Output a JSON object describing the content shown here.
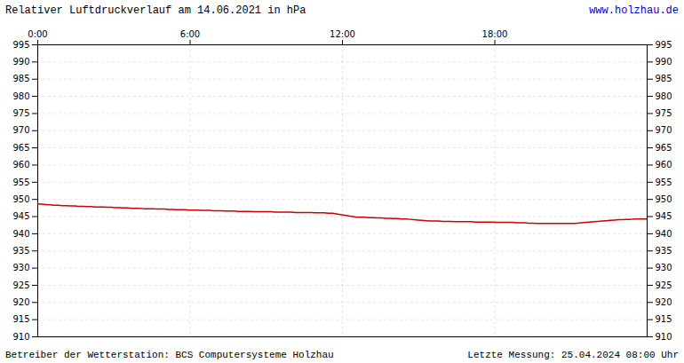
{
  "chart_data": {
    "type": "line",
    "title": "Relativer Luftdruckverlauf am 14.06.2021 in hPa",
    "annotations": [
      "www.holzhau.de",
      "Betreiber der Wetterstation: BCS Computersysteme Holzhau",
      "Letzte Messung: 25.04.2024 08:00 Uhr"
    ],
    "color": "#cc0000",
    "grid": true,
    "xlim": [
      0,
      1440
    ],
    "xticks": [
      {
        "value": 0,
        "label": "0:00"
      },
      {
        "value": 360,
        "label": "6:00"
      },
      {
        "value": 720,
        "label": "12:00"
      },
      {
        "value": 1080,
        "label": "18:00"
      }
    ],
    "ylim": [
      910,
      995
    ],
    "yticks": [
      910,
      915,
      920,
      925,
      930,
      935,
      940,
      945,
      950,
      955,
      960,
      965,
      970,
      975,
      980,
      985,
      990,
      995
    ],
    "x": [
      0,
      9.664,
      19.329,
      28.993,
      38.658,
      48.322,
      57.987,
      67.651,
      77.315,
      86.98,
      96.644,
      106.309,
      115.973,
      125.638,
      135.302,
      144.966,
      154.631,
      164.295,
      173.96,
      183.624,
      193.289,
      202.953,
      212.617,
      222.282,
      231.946,
      241.611,
      251.275,
      260.94,
      270.604,
      280.268,
      289.933,
      299.597,
      309.262,
      318.926,
      328.591,
      338.255,
      347.919,
      357.584,
      367.248,
      376.913,
      386.577,
      396.242,
      405.906,
      415.57,
      425.235,
      434.899,
      444.564,
      454.228,
      463.893,
      473.557,
      483.221,
      492.886,
      502.55,
      512.215,
      521.879,
      531.544,
      541.208,
      550.872,
      560.537,
      570.201,
      579.866,
      589.53,
      599.195,
      608.859,
      618.523,
      628.188,
      637.852,
      647.517,
      657.181,
      666.846,
      676.51,
      686.174,
      695.839,
      705.503,
      715.168,
      724.832,
      734.497,
      744.161,
      753.826,
      763.49,
      773.154,
      782.819,
      792.483,
      802.148,
      811.812,
      821.477,
      831.141,
      840.805,
      850.47,
      860.134,
      869.799,
      879.463,
      889.128,
      898.792,
      908.456,
      918.121,
      927.785,
      937.45,
      947.114,
      956.779,
      966.443,
      976.107,
      985.772,
      995.436,
      1005.101,
      1014.765,
      1024.43,
      1034.094,
      1043.758,
      1053.423,
      1063.087,
      1072.752,
      1082.416,
      1092.081,
      1101.745,
      1111.409,
      1121.074,
      1130.738,
      1140.403,
      1150.067,
      1159.732,
      1169.396,
      1179.06,
      1188.725,
      1198.389,
      1208.054,
      1217.718,
      1227.383,
      1237.047,
      1246.711,
      1256.376,
      1266.04,
      1275.705,
      1285.369,
      1295.034,
      1304.698,
      1314.362,
      1324.027,
      1333.691,
      1343.356,
      1353.02,
      1362.685,
      1372.349,
      1382.013,
      1391.678,
      1401.342,
      1411.007,
      1420.671,
      1430.336,
      1440
    ],
    "values": [
      948.7,
      948.6,
      948.5,
      948.4,
      948.3,
      948.3,
      948.2,
      948.2,
      948.1,
      948.1,
      948.0,
      948.0,
      947.9,
      947.9,
      947.8,
      947.8,
      947.8,
      947.7,
      947.7,
      947.6,
      947.6,
      947.5,
      947.5,
      947.4,
      947.4,
      947.4,
      947.3,
      947.3,
      947.3,
      947.2,
      947.2,
      947.2,
      947.1,
      947.1,
      947.0,
      947.0,
      947.0,
      946.9,
      946.9,
      946.9,
      946.8,
      946.8,
      946.8,
      946.7,
      946.7,
      946.7,
      946.6,
      946.6,
      946.6,
      946.5,
      946.5,
      946.5,
      946.5,
      946.4,
      946.4,
      946.4,
      946.4,
      946.4,
      946.3,
      946.3,
      946.3,
      946.3,
      946.3,
      946.2,
      946.2,
      946.2,
      946.2,
      946.2,
      946.1,
      946.1,
      946.1,
      946.0,
      946.0,
      945.8,
      945.6,
      945.4,
      945.2,
      945.0,
      944.8,
      944.8,
      944.8,
      944.7,
      944.7,
      944.6,
      944.6,
      944.5,
      944.5,
      944.4,
      944.4,
      944.3,
      944.3,
      944.2,
      944.1,
      944.0,
      943.9,
      943.8,
      943.7,
      943.7,
      943.7,
      943.6,
      943.6,
      943.6,
      943.5,
      943.5,
      943.5,
      943.5,
      943.5,
      943.4,
      943.4,
      943.4,
      943.4,
      943.4,
      943.3,
      943.3,
      943.3,
      943.3,
      943.3,
      943.2,
      943.2,
      943.2,
      943.1,
      943.1,
      943.0,
      943.0,
      943.0,
      943.0,
      943.0,
      943.0,
      943.0,
      943.0,
      943.0,
      943.0,
      943.1,
      943.2,
      943.3,
      943.4,
      943.5,
      943.6,
      943.7,
      943.8,
      943.9,
      944.0,
      944.1,
      944.1,
      944.2,
      944.2,
      944.3,
      944.3,
      944.3,
      944.3
    ]
  }
}
